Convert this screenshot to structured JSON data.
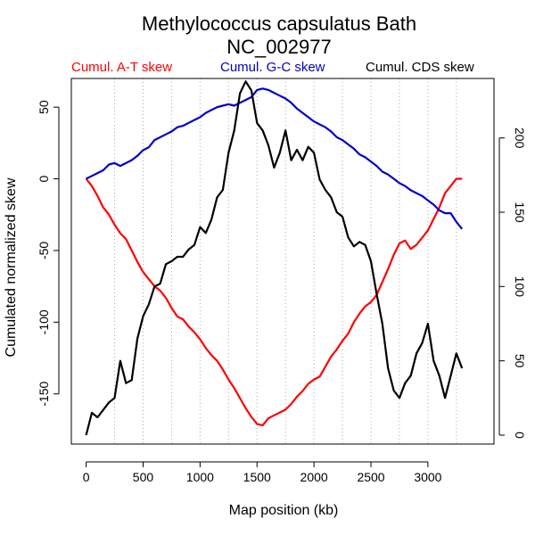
{
  "chart_data": {
    "type": "line",
    "title": "Methylococcus capsulatus Bath",
    "subtitle": "NC_002977",
    "xlabel": "Map position (kb)",
    "ylabel": "Cumulated normalized skew",
    "xlim": [
      -130,
      3580
    ],
    "ylim": [
      -185,
      70
    ],
    "y2lim": [
      -6,
      240
    ],
    "x_ticks": [
      0,
      500,
      1000,
      1500,
      2000,
      2500,
      3000
    ],
    "y_ticks": [
      -150,
      -100,
      -50,
      0,
      50
    ],
    "y2_ticks": [
      0,
      50,
      100,
      150,
      200
    ],
    "vgrid": [
      250,
      500,
      750,
      1000,
      1250,
      1500,
      1750,
      2000,
      2250,
      2500,
      2750,
      3000,
      3250
    ],
    "grid": "dotted vertical",
    "legend": "top",
    "series": [
      {
        "name": "Cumul. A-T skew",
        "color": "#ff0000",
        "axis": "left",
        "x": [
          0,
          50,
          100,
          150,
          200,
          250,
          300,
          350,
          400,
          450,
          500,
          550,
          600,
          650,
          700,
          750,
          800,
          850,
          900,
          950,
          1000,
          1050,
          1100,
          1150,
          1200,
          1250,
          1300,
          1350,
          1400,
          1450,
          1500,
          1550,
          1600,
          1650,
          1700,
          1750,
          1800,
          1850,
          1900,
          1950,
          2000,
          2050,
          2100,
          2150,
          2200,
          2250,
          2300,
          2350,
          2400,
          2450,
          2500,
          2550,
          2600,
          2650,
          2700,
          2750,
          2800,
          2850,
          2900,
          2950,
          3000,
          3050,
          3100,
          3150,
          3200,
          3250,
          3300
        ],
        "y": [
          0,
          -5,
          -12,
          -20,
          -25,
          -32,
          -38,
          -42,
          -50,
          -58,
          -65,
          -70,
          -75,
          -78,
          -83,
          -90,
          -96,
          -98,
          -103,
          -107,
          -112,
          -118,
          -123,
          -127,
          -133,
          -140,
          -146,
          -153,
          -160,
          -166,
          -171,
          -172,
          -167,
          -165,
          -163,
          -161,
          -157,
          -152,
          -148,
          -143,
          -140,
          -138,
          -131,
          -124,
          -119,
          -113,
          -108,
          -100,
          -94,
          -89,
          -86,
          -81,
          -72,
          -63,
          -53,
          -45,
          -43,
          -49,
          -46,
          -41,
          -36,
          -28,
          -20,
          -10,
          -5,
          0,
          0
        ]
      },
      {
        "name": "Cumul. G-C skew",
        "color": "#0000cc",
        "axis": "left",
        "x": [
          0,
          50,
          100,
          150,
          200,
          250,
          300,
          350,
          400,
          450,
          500,
          550,
          600,
          650,
          700,
          750,
          800,
          850,
          900,
          950,
          1000,
          1050,
          1100,
          1150,
          1200,
          1250,
          1300,
          1350,
          1400,
          1450,
          1500,
          1550,
          1600,
          1650,
          1700,
          1750,
          1800,
          1850,
          1900,
          1950,
          2000,
          2050,
          2100,
          2150,
          2200,
          2250,
          2300,
          2350,
          2400,
          2450,
          2500,
          2550,
          2600,
          2650,
          2700,
          2750,
          2800,
          2850,
          2900,
          2950,
          3000,
          3050,
          3100,
          3150,
          3200,
          3250,
          3300
        ],
        "y": [
          0,
          2,
          4,
          6,
          10,
          11,
          9,
          11,
          13,
          16,
          20,
          22,
          27,
          29,
          31,
          33,
          36,
          37,
          39,
          41,
          43,
          46,
          48,
          50,
          51,
          52,
          51,
          53,
          55,
          57,
          62,
          63,
          62,
          60,
          58,
          56,
          53,
          49,
          46,
          43,
          40,
          38,
          36,
          33,
          29,
          27,
          24,
          21,
          17,
          15,
          12,
          9,
          5,
          3,
          0,
          -3,
          -5,
          -8,
          -10,
          -12,
          -15,
          -18,
          -22,
          -24,
          -24,
          -30,
          -35
        ]
      },
      {
        "name": "Cumul. CDS skew",
        "color": "#000000",
        "axis": "right",
        "x": [
          0,
          50,
          100,
          150,
          200,
          250,
          300,
          350,
          400,
          450,
          500,
          550,
          600,
          650,
          700,
          750,
          800,
          850,
          900,
          950,
          1000,
          1050,
          1100,
          1150,
          1200,
          1250,
          1300,
          1350,
          1400,
          1450,
          1500,
          1550,
          1600,
          1650,
          1700,
          1750,
          1800,
          1850,
          1900,
          1950,
          2000,
          2050,
          2100,
          2150,
          2200,
          2250,
          2300,
          2350,
          2400,
          2450,
          2500,
          2550,
          2600,
          2650,
          2700,
          2750,
          2800,
          2850,
          2900,
          2950,
          3000,
          3050,
          3100,
          3150,
          3200,
          3250,
          3300
        ],
        "y": [
          0,
          15,
          12,
          17,
          22,
          25,
          50,
          35,
          37,
          65,
          80,
          88,
          100,
          102,
          115,
          117,
          120,
          120,
          125,
          128,
          140,
          136,
          145,
          160,
          165,
          190,
          205,
          230,
          238,
          232,
          210,
          205,
          195,
          180,
          190,
          205,
          185,
          192,
          185,
          194,
          190,
          172,
          165,
          160,
          150,
          147,
          133,
          127,
          130,
          128,
          117,
          95,
          75,
          45,
          30,
          25,
          35,
          40,
          55,
          62,
          75,
          50,
          40,
          25,
          40,
          55,
          45
        ]
      }
    ]
  }
}
